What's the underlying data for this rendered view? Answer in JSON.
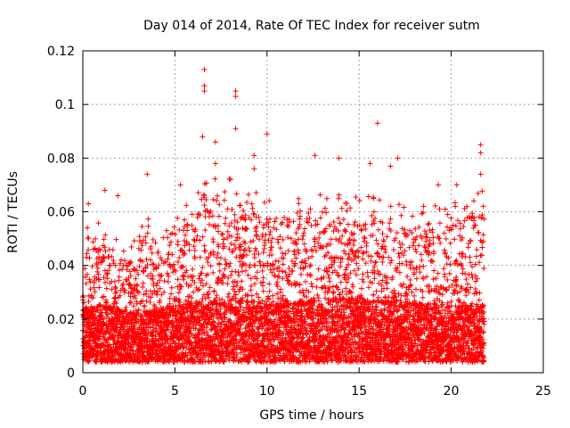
{
  "chart_data": {
    "type": "scatter",
    "title": "Day 014 of 2014, Rate Of TEC Index for receiver sutm",
    "xlabel": "GPS time / hours",
    "ylabel": "ROTI / TECUs",
    "xlim": [
      0,
      25
    ],
    "ylim": [
      0,
      0.12
    ],
    "xticks": [
      0,
      5,
      10,
      15,
      20,
      25
    ],
    "xtick_labels": [
      "0",
      "5",
      "10",
      "15",
      "20",
      "25"
    ],
    "yticks": [
      0,
      0.02,
      0.04,
      0.06,
      0.08,
      0.1,
      0.12
    ],
    "ytick_labels": [
      "0",
      "0.02",
      "0.04",
      "0.06",
      "0.08",
      "0.1",
      "0.12"
    ],
    "grid": true,
    "marker": "+",
    "color": "#ff0000",
    "data_range_hours": [
      0,
      21.8
    ],
    "envelope": {
      "hours": [
        0,
        1,
        2,
        3,
        3.5,
        4,
        5,
        6,
        7,
        8,
        9,
        10,
        11,
        12,
        13,
        14,
        15,
        16,
        17,
        18,
        19,
        20,
        21,
        21.8
      ],
      "base": [
        0.012,
        0.014,
        0.012,
        0.01,
        0.011,
        0.012,
        0.013,
        0.014,
        0.015,
        0.016,
        0.015,
        0.014,
        0.014,
        0.015,
        0.016,
        0.016,
        0.016,
        0.015,
        0.015,
        0.014,
        0.014,
        0.013,
        0.013,
        0.013
      ],
      "upper_typical": [
        0.045,
        0.05,
        0.04,
        0.042,
        0.055,
        0.04,
        0.055,
        0.06,
        0.065,
        0.065,
        0.06,
        0.058,
        0.055,
        0.06,
        0.062,
        0.06,
        0.058,
        0.058,
        0.055,
        0.055,
        0.055,
        0.055,
        0.06,
        0.06
      ]
    },
    "outliers": [
      {
        "x": 0.3,
        "y": 0.063
      },
      {
        "x": 1.2,
        "y": 0.068
      },
      {
        "x": 1.9,
        "y": 0.066
      },
      {
        "x": 3.5,
        "y": 0.074
      },
      {
        "x": 5.3,
        "y": 0.07
      },
      {
        "x": 6.6,
        "y": 0.113
      },
      {
        "x": 6.6,
        "y": 0.107
      },
      {
        "x": 6.6,
        "y": 0.105
      },
      {
        "x": 6.5,
        "y": 0.088
      },
      {
        "x": 7.2,
        "y": 0.086
      },
      {
        "x": 7.2,
        "y": 0.078
      },
      {
        "x": 8.3,
        "y": 0.105
      },
      {
        "x": 8.3,
        "y": 0.103
      },
      {
        "x": 8.3,
        "y": 0.091
      },
      {
        "x": 9.3,
        "y": 0.081
      },
      {
        "x": 9.3,
        "y": 0.076
      },
      {
        "x": 10.0,
        "y": 0.089
      },
      {
        "x": 12.6,
        "y": 0.081
      },
      {
        "x": 13.9,
        "y": 0.08
      },
      {
        "x": 16.0,
        "y": 0.093
      },
      {
        "x": 15.6,
        "y": 0.078
      },
      {
        "x": 16.7,
        "y": 0.077
      },
      {
        "x": 17.1,
        "y": 0.08
      },
      {
        "x": 19.3,
        "y": 0.07
      },
      {
        "x": 20.3,
        "y": 0.07
      },
      {
        "x": 21.6,
        "y": 0.085
      },
      {
        "x": 21.6,
        "y": 0.082
      },
      {
        "x": 21.6,
        "y": 0.074
      }
    ]
  }
}
